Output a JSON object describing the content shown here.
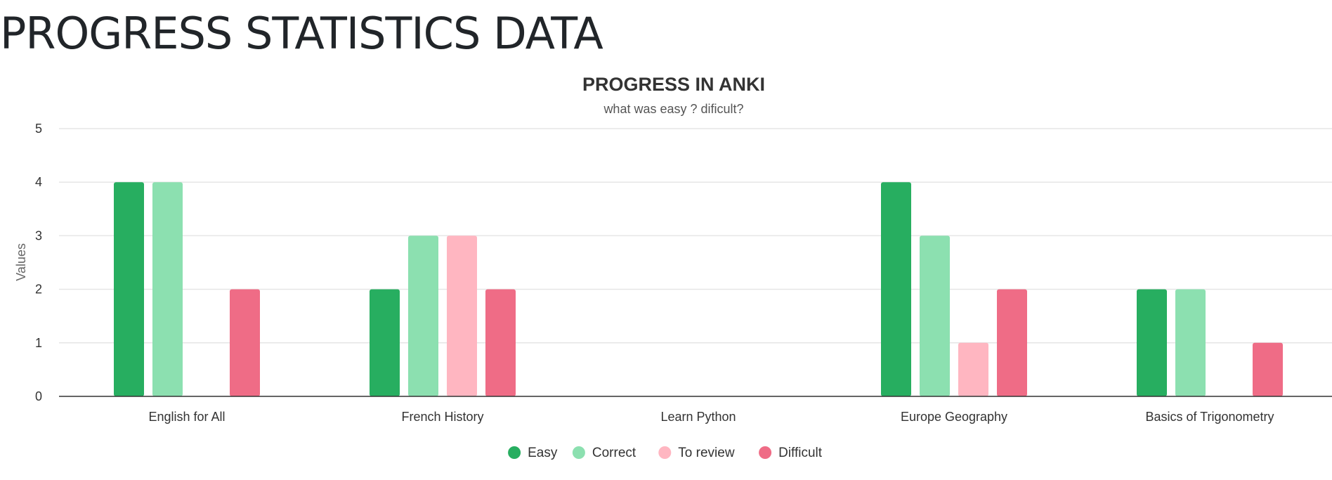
{
  "page": {
    "heading": "PROGRESS STATISTICS DATA"
  },
  "chart_data": {
    "type": "bar",
    "title": "PROGRESS IN ANKI",
    "subtitle": "what was easy ? dificult?",
    "xlabel": "",
    "ylabel": "Values",
    "ylim": [
      0,
      5
    ],
    "yticks": [
      0,
      1,
      2,
      3,
      4,
      5
    ],
    "grid": true,
    "legend_position": "bottom-center",
    "categories": [
      "English for All",
      "French History",
      "Learn Python",
      "Europe Geography",
      "Basics of Trigonometry"
    ],
    "series": [
      {
        "name": "Easy",
        "color": "#27ae60",
        "values": [
          4,
          2,
          0,
          4,
          2
        ]
      },
      {
        "name": "Correct",
        "color": "#8ce0b0",
        "values": [
          4,
          3,
          0,
          3,
          2
        ]
      },
      {
        "name": "To review",
        "color": "#ffb6c1",
        "values": [
          0,
          3,
          0,
          1,
          0
        ]
      },
      {
        "name": "Difficult",
        "color": "#ef6c86",
        "values": [
          2,
          2,
          0,
          2,
          1
        ]
      }
    ]
  }
}
